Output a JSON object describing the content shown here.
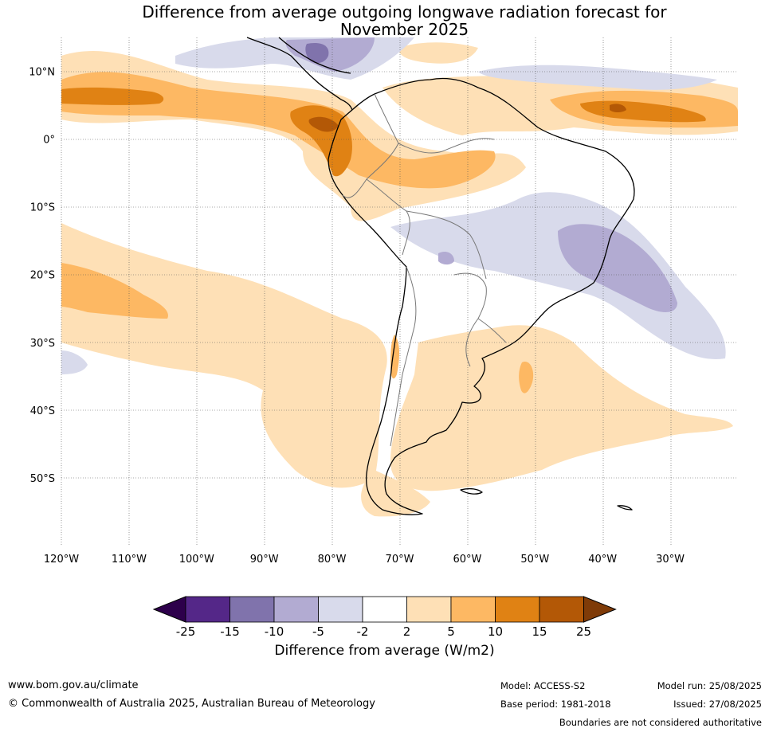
{
  "title": {
    "line1": "Difference from average outgoing longwave radiation forecast for",
    "line2": "November 2025"
  },
  "map": {
    "extent": {
      "lon": [
        -120,
        -20
      ],
      "lat": [
        -60,
        15
      ]
    },
    "lat_labels": [
      "10°N",
      "0°",
      "10°S",
      "20°S",
      "30°S",
      "40°S",
      "50°S"
    ],
    "lon_labels": [
      "120°W",
      "110°W",
      "100°W",
      "90°W",
      "80°W",
      "70°W",
      "60°W",
      "50°W",
      "40°W",
      "30°W"
    ]
  },
  "colorbar": {
    "ticks": [
      "-25",
      "-15",
      "-10",
      "-5",
      "-2",
      "2",
      "5",
      "10",
      "15",
      "25"
    ],
    "colors": [
      "#2d004b",
      "#542788",
      "#8073ac",
      "#b2abd2",
      "#d8daeb",
      "#ffffff",
      "#fee0b6",
      "#fdb863",
      "#e08214",
      "#b35806",
      "#7f3b08"
    ],
    "label": "Difference from average (W/m2)"
  },
  "footer": {
    "website": "www.bom.gov.au/climate",
    "copyright": "© Commonwealth of Australia 2025, Australian Bureau of Meteorology",
    "model": "Model: ACCESS-S2",
    "base_period": "Base period: 1981-2018",
    "model_run": "Model run: 25/08/2025",
    "issued": "Issued: 27/08/2025",
    "disclaimer": "Boundaries are not considered authoritative"
  }
}
